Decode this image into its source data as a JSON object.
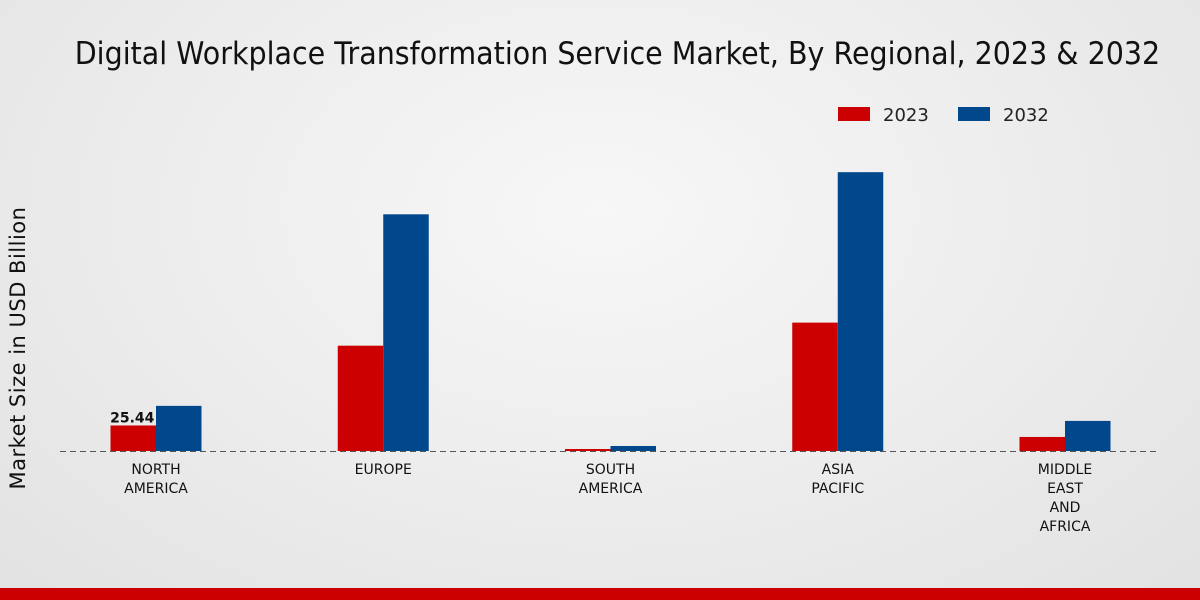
{
  "chart_data": {
    "type": "bar",
    "title": "Digital Workplace Transformation Service Market, By Regional, 2023 & 2032",
    "xlabel": "",
    "ylabel": "Market Size in USD Billion",
    "categories": [
      "NORTH\nAMERICA",
      "EUROPE",
      "SOUTH\nAMERICA",
      "ASIA\nPACIFIC",
      "MIDDLE\nEAST\nAND\nAFRICA"
    ],
    "series": [
      {
        "name": "2023",
        "color": "#cc0000",
        "values": [
          25.44,
          105.0,
          2.0,
          128.0,
          14.0
        ]
      },
      {
        "name": "2032",
        "color": "#00478c",
        "values": [
          45.0,
          236.0,
          5.0,
          278.0,
          30.0
        ]
      }
    ],
    "data_labels": [
      {
        "series": "2023",
        "category_index": 0,
        "text": "25.44"
      }
    ],
    "ylim": [
      0,
      340
    ],
    "grid": false,
    "legend_position": "top-right",
    "baseline_style": "dashed"
  },
  "theme": {
    "bottom_bar_color": "#cc0000"
  }
}
